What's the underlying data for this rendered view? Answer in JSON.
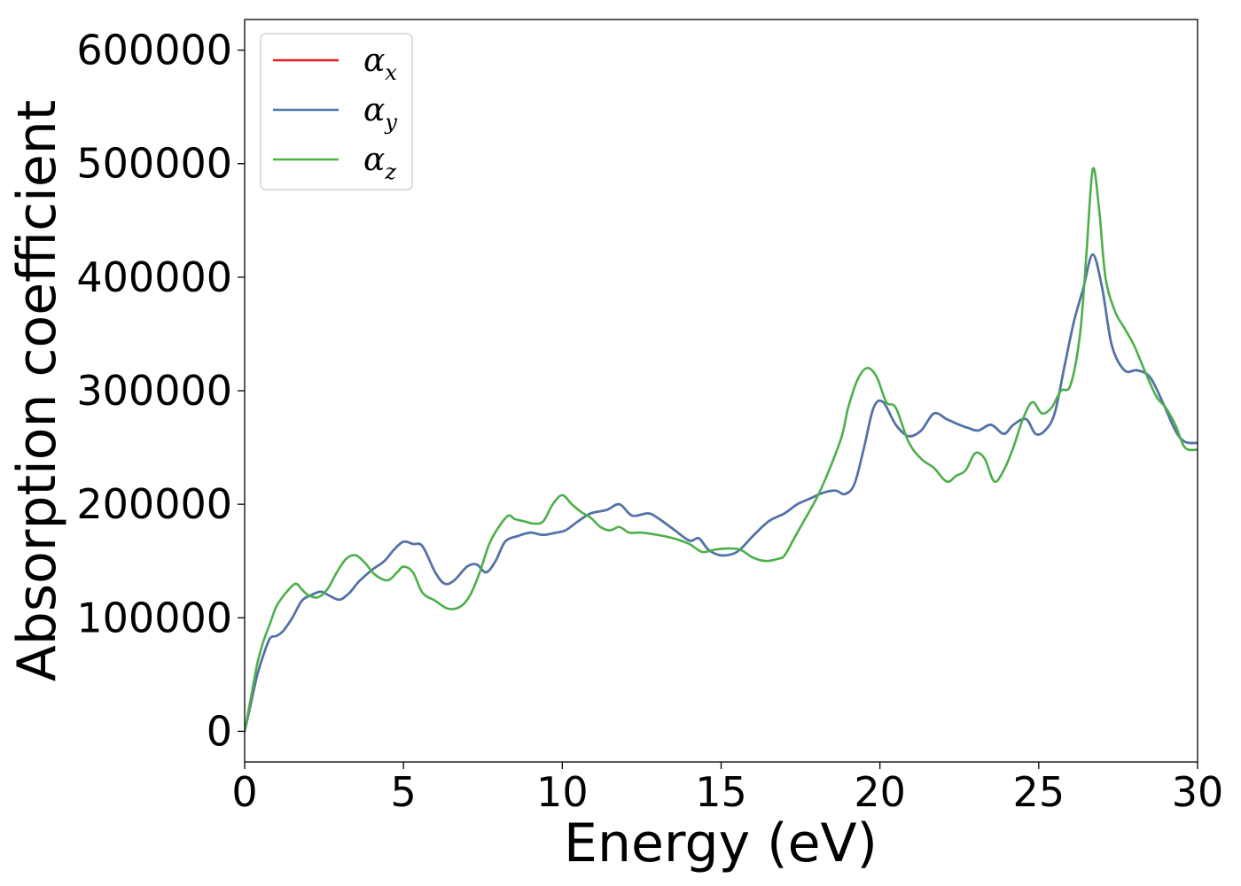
{
  "chart_data": {
    "type": "line",
    "xlabel": "Energy (eV)",
    "ylabel": "Absorption coefficient",
    "xlim": [
      0,
      30
    ],
    "ylim": [
      -27000,
      627000
    ],
    "xticks": [
      0,
      5,
      10,
      15,
      20,
      25,
      30
    ],
    "yticks": [
      0,
      100000,
      200000,
      300000,
      400000,
      500000,
      600000
    ],
    "grid": false,
    "legend_position": "top-left",
    "series": [
      {
        "name": "α_x",
        "base": "α",
        "sub": "x",
        "color": "#e41a1c",
        "x": [
          0,
          0.2,
          0.4,
          0.6,
          0.8,
          1.0,
          1.2,
          1.5,
          1.8,
          2.1,
          2.4,
          2.7,
          3.0,
          3.3,
          3.6,
          4.0,
          4.4,
          4.7,
          5.0,
          5.3,
          5.6,
          6.0,
          6.3,
          6.6,
          7.0,
          7.3,
          7.6,
          7.9,
          8.2,
          8.6,
          9.0,
          9.4,
          9.8,
          10.1,
          10.5,
          10.9,
          11.4,
          11.8,
          12.2,
          12.7,
          13.0,
          13.5,
          14.0,
          14.3,
          14.6,
          15.0,
          15.5,
          16.0,
          16.5,
          17.0,
          17.4,
          17.8,
          18.2,
          18.6,
          18.9,
          19.2,
          19.5,
          19.8,
          20.1,
          20.5,
          20.9,
          21.3,
          21.7,
          22.1,
          22.5,
          22.8,
          23.1,
          23.5,
          23.9,
          24.2,
          24.6,
          24.9,
          25.2,
          25.5,
          25.8,
          26.1,
          26.4,
          26.7,
          27.0,
          27.3,
          27.7,
          28.1,
          28.5,
          28.9,
          29.3,
          29.6,
          30.0
        ],
        "values": [
          0,
          25000,
          50000,
          68000,
          82000,
          84000,
          88000,
          100000,
          115000,
          120000,
          123000,
          119000,
          116000,
          122000,
          132000,
          142000,
          150000,
          160000,
          167000,
          165000,
          163000,
          140000,
          130000,
          133000,
          145000,
          147000,
          140000,
          150000,
          167000,
          172000,
          175000,
          173000,
          175000,
          177000,
          185000,
          192000,
          195000,
          200000,
          190000,
          192000,
          188000,
          178000,
          168000,
          170000,
          160000,
          155000,
          158000,
          172000,
          185000,
          192000,
          200000,
          205000,
          210000,
          212000,
          209000,
          218000,
          250000,
          285000,
          290000,
          270000,
          260000,
          265000,
          280000,
          275000,
          270000,
          267000,
          265000,
          270000,
          262000,
          270000,
          275000,
          262000,
          265000,
          280000,
          320000,
          360000,
          390000,
          420000,
          390000,
          340000,
          318000,
          318000,
          312000,
          290000,
          265000,
          255000,
          254000
        ]
      },
      {
        "name": "α_y",
        "base": "α",
        "sub": "y",
        "color": "#4a76ad",
        "x": [
          0,
          0.2,
          0.4,
          0.6,
          0.8,
          1.0,
          1.2,
          1.5,
          1.8,
          2.1,
          2.4,
          2.7,
          3.0,
          3.3,
          3.6,
          4.0,
          4.4,
          4.7,
          5.0,
          5.3,
          5.6,
          6.0,
          6.3,
          6.6,
          7.0,
          7.3,
          7.6,
          7.9,
          8.2,
          8.6,
          9.0,
          9.4,
          9.8,
          10.1,
          10.5,
          10.9,
          11.4,
          11.8,
          12.2,
          12.7,
          13.0,
          13.5,
          14.0,
          14.3,
          14.6,
          15.0,
          15.5,
          16.0,
          16.5,
          17.0,
          17.4,
          17.8,
          18.2,
          18.6,
          18.9,
          19.2,
          19.5,
          19.8,
          20.1,
          20.5,
          20.9,
          21.3,
          21.7,
          22.1,
          22.5,
          22.8,
          23.1,
          23.5,
          23.9,
          24.2,
          24.6,
          24.9,
          25.2,
          25.5,
          25.8,
          26.1,
          26.4,
          26.7,
          27.0,
          27.3,
          27.7,
          28.1,
          28.5,
          28.9,
          29.3,
          29.6,
          30.0
        ],
        "values": [
          0,
          25000,
          50000,
          68000,
          82000,
          84000,
          88000,
          100000,
          115000,
          120000,
          123000,
          119000,
          116000,
          122000,
          132000,
          142000,
          150000,
          160000,
          167000,
          165000,
          163000,
          140000,
          130000,
          133000,
          145000,
          147000,
          140000,
          150000,
          167000,
          172000,
          175000,
          173000,
          175000,
          177000,
          185000,
          192000,
          195000,
          200000,
          190000,
          192000,
          188000,
          178000,
          168000,
          170000,
          160000,
          155000,
          158000,
          172000,
          185000,
          192000,
          200000,
          205000,
          210000,
          212000,
          209000,
          218000,
          250000,
          285000,
          290000,
          270000,
          260000,
          265000,
          280000,
          275000,
          270000,
          267000,
          265000,
          270000,
          262000,
          270000,
          275000,
          262000,
          265000,
          280000,
          320000,
          360000,
          390000,
          420000,
          390000,
          340000,
          318000,
          318000,
          312000,
          290000,
          265000,
          255000,
          254000
        ]
      },
      {
        "name": "α_z",
        "base": "α",
        "sub": "z",
        "color": "#4daf4a",
        "x": [
          0,
          0.2,
          0.4,
          0.6,
          0.8,
          1.0,
          1.3,
          1.6,
          1.8,
          2.0,
          2.3,
          2.6,
          2.9,
          3.2,
          3.5,
          3.8,
          4.1,
          4.5,
          4.8,
          5.0,
          5.3,
          5.6,
          6.0,
          6.4,
          6.8,
          7.1,
          7.4,
          7.7,
          8.0,
          8.3,
          8.5,
          8.8,
          9.1,
          9.4,
          9.7,
          10.0,
          10.3,
          10.6,
          10.9,
          11.2,
          11.5,
          11.8,
          12.1,
          12.5,
          13.0,
          13.5,
          14.0,
          14.4,
          14.8,
          15.2,
          15.6,
          16.0,
          16.4,
          16.8,
          17.0,
          17.3,
          17.6,
          18.0,
          18.4,
          18.8,
          19.0,
          19.3,
          19.6,
          19.9,
          20.2,
          20.5,
          20.9,
          21.3,
          21.7,
          22.1,
          22.4,
          22.7,
          23.0,
          23.3,
          23.6,
          23.9,
          24.2,
          24.5,
          24.8,
          25.1,
          25.4,
          25.7,
          26.0,
          26.3,
          26.5,
          26.7,
          26.9,
          27.1,
          27.4,
          27.7,
          28.0,
          28.3,
          28.7,
          29.0,
          29.3,
          29.6,
          30.0
        ],
        "values": [
          0,
          30000,
          60000,
          80000,
          95000,
          110000,
          122000,
          130000,
          125000,
          120000,
          118000,
          125000,
          140000,
          152000,
          155000,
          148000,
          138000,
          133000,
          140000,
          145000,
          140000,
          122000,
          115000,
          108000,
          110000,
          120000,
          140000,
          165000,
          180000,
          190000,
          187000,
          185000,
          183000,
          185000,
          200000,
          208000,
          200000,
          193000,
          188000,
          180000,
          177000,
          180000,
          175000,
          175000,
          173000,
          170000,
          165000,
          158000,
          160000,
          161000,
          160000,
          153000,
          150000,
          152000,
          155000,
          170000,
          185000,
          205000,
          230000,
          260000,
          285000,
          310000,
          320000,
          312000,
          290000,
          285000,
          255000,
          240000,
          232000,
          220000,
          225000,
          230000,
          245000,
          240000,
          220000,
          230000,
          250000,
          275000,
          290000,
          280000,
          285000,
          300000,
          305000,
          350000,
          420000,
          495000,
          460000,
          400000,
          370000,
          355000,
          340000,
          320000,
          295000,
          285000,
          270000,
          250000,
          248000
        ]
      }
    ]
  }
}
